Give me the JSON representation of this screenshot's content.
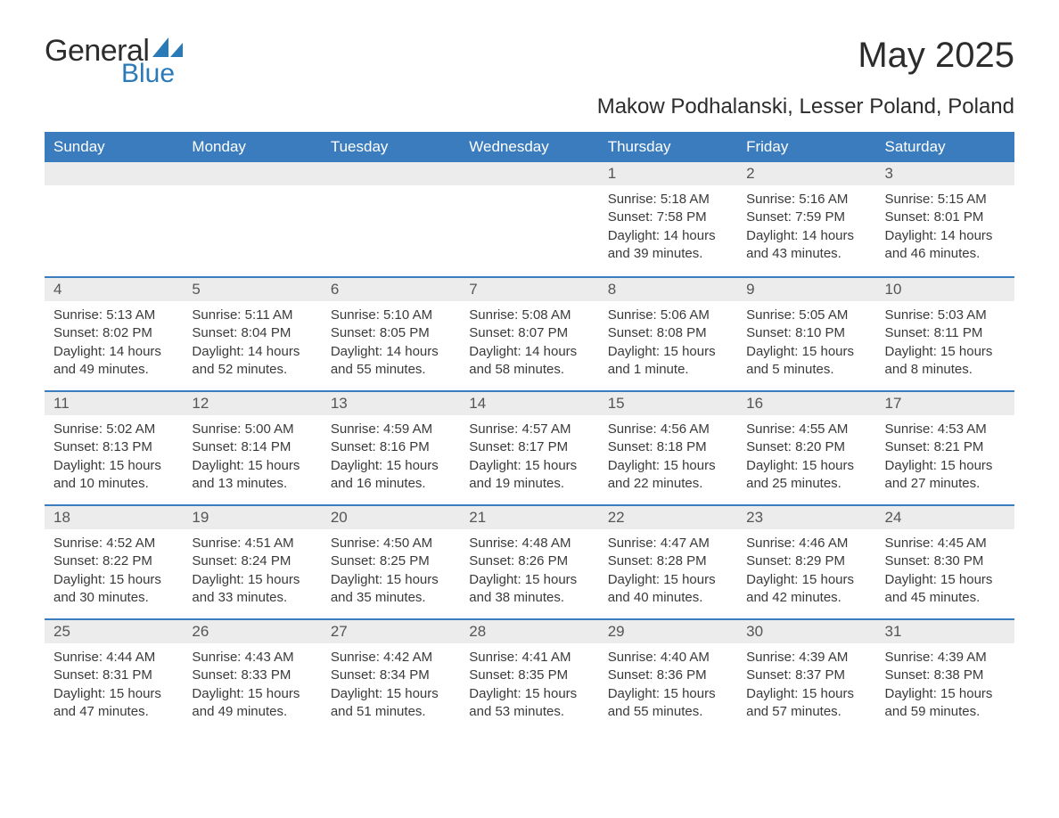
{
  "brand": {
    "general": "General",
    "blue": "Blue"
  },
  "title": "May 2025",
  "location": "Makow Podhalanski, Lesser Poland, Poland",
  "colors": {
    "header_bg": "#3b7cbf",
    "header_text": "#ffffff",
    "daynum_bg": "#ececec",
    "daynum_text": "#555555",
    "body_text": "#3a3a3a",
    "brand_blue": "#2a7ab8",
    "week_divider": "#3b7cbf",
    "page_bg": "#ffffff"
  },
  "weekdays": [
    "Sunday",
    "Monday",
    "Tuesday",
    "Wednesday",
    "Thursday",
    "Friday",
    "Saturday"
  ],
  "weeks": [
    [
      {
        "n": "",
        "sr": "",
        "ss": "",
        "dl": ""
      },
      {
        "n": "",
        "sr": "",
        "ss": "",
        "dl": ""
      },
      {
        "n": "",
        "sr": "",
        "ss": "",
        "dl": ""
      },
      {
        "n": "",
        "sr": "",
        "ss": "",
        "dl": ""
      },
      {
        "n": "1",
        "sr": "Sunrise: 5:18 AM",
        "ss": "Sunset: 7:58 PM",
        "dl": "Daylight: 14 hours and 39 minutes."
      },
      {
        "n": "2",
        "sr": "Sunrise: 5:16 AM",
        "ss": "Sunset: 7:59 PM",
        "dl": "Daylight: 14 hours and 43 minutes."
      },
      {
        "n": "3",
        "sr": "Sunrise: 5:15 AM",
        "ss": "Sunset: 8:01 PM",
        "dl": "Daylight: 14 hours and 46 minutes."
      }
    ],
    [
      {
        "n": "4",
        "sr": "Sunrise: 5:13 AM",
        "ss": "Sunset: 8:02 PM",
        "dl": "Daylight: 14 hours and 49 minutes."
      },
      {
        "n": "5",
        "sr": "Sunrise: 5:11 AM",
        "ss": "Sunset: 8:04 PM",
        "dl": "Daylight: 14 hours and 52 minutes."
      },
      {
        "n": "6",
        "sr": "Sunrise: 5:10 AM",
        "ss": "Sunset: 8:05 PM",
        "dl": "Daylight: 14 hours and 55 minutes."
      },
      {
        "n": "7",
        "sr": "Sunrise: 5:08 AM",
        "ss": "Sunset: 8:07 PM",
        "dl": "Daylight: 14 hours and 58 minutes."
      },
      {
        "n": "8",
        "sr": "Sunrise: 5:06 AM",
        "ss": "Sunset: 8:08 PM",
        "dl": "Daylight: 15 hours and 1 minute."
      },
      {
        "n": "9",
        "sr": "Sunrise: 5:05 AM",
        "ss": "Sunset: 8:10 PM",
        "dl": "Daylight: 15 hours and 5 minutes."
      },
      {
        "n": "10",
        "sr": "Sunrise: 5:03 AM",
        "ss": "Sunset: 8:11 PM",
        "dl": "Daylight: 15 hours and 8 minutes."
      }
    ],
    [
      {
        "n": "11",
        "sr": "Sunrise: 5:02 AM",
        "ss": "Sunset: 8:13 PM",
        "dl": "Daylight: 15 hours and 10 minutes."
      },
      {
        "n": "12",
        "sr": "Sunrise: 5:00 AM",
        "ss": "Sunset: 8:14 PM",
        "dl": "Daylight: 15 hours and 13 minutes."
      },
      {
        "n": "13",
        "sr": "Sunrise: 4:59 AM",
        "ss": "Sunset: 8:16 PM",
        "dl": "Daylight: 15 hours and 16 minutes."
      },
      {
        "n": "14",
        "sr": "Sunrise: 4:57 AM",
        "ss": "Sunset: 8:17 PM",
        "dl": "Daylight: 15 hours and 19 minutes."
      },
      {
        "n": "15",
        "sr": "Sunrise: 4:56 AM",
        "ss": "Sunset: 8:18 PM",
        "dl": "Daylight: 15 hours and 22 minutes."
      },
      {
        "n": "16",
        "sr": "Sunrise: 4:55 AM",
        "ss": "Sunset: 8:20 PM",
        "dl": "Daylight: 15 hours and 25 minutes."
      },
      {
        "n": "17",
        "sr": "Sunrise: 4:53 AM",
        "ss": "Sunset: 8:21 PM",
        "dl": "Daylight: 15 hours and 27 minutes."
      }
    ],
    [
      {
        "n": "18",
        "sr": "Sunrise: 4:52 AM",
        "ss": "Sunset: 8:22 PM",
        "dl": "Daylight: 15 hours and 30 minutes."
      },
      {
        "n": "19",
        "sr": "Sunrise: 4:51 AM",
        "ss": "Sunset: 8:24 PM",
        "dl": "Daylight: 15 hours and 33 minutes."
      },
      {
        "n": "20",
        "sr": "Sunrise: 4:50 AM",
        "ss": "Sunset: 8:25 PM",
        "dl": "Daylight: 15 hours and 35 minutes."
      },
      {
        "n": "21",
        "sr": "Sunrise: 4:48 AM",
        "ss": "Sunset: 8:26 PM",
        "dl": "Daylight: 15 hours and 38 minutes."
      },
      {
        "n": "22",
        "sr": "Sunrise: 4:47 AM",
        "ss": "Sunset: 8:28 PM",
        "dl": "Daylight: 15 hours and 40 minutes."
      },
      {
        "n": "23",
        "sr": "Sunrise: 4:46 AM",
        "ss": "Sunset: 8:29 PM",
        "dl": "Daylight: 15 hours and 42 minutes."
      },
      {
        "n": "24",
        "sr": "Sunrise: 4:45 AM",
        "ss": "Sunset: 8:30 PM",
        "dl": "Daylight: 15 hours and 45 minutes."
      }
    ],
    [
      {
        "n": "25",
        "sr": "Sunrise: 4:44 AM",
        "ss": "Sunset: 8:31 PM",
        "dl": "Daylight: 15 hours and 47 minutes."
      },
      {
        "n": "26",
        "sr": "Sunrise: 4:43 AM",
        "ss": "Sunset: 8:33 PM",
        "dl": "Daylight: 15 hours and 49 minutes."
      },
      {
        "n": "27",
        "sr": "Sunrise: 4:42 AM",
        "ss": "Sunset: 8:34 PM",
        "dl": "Daylight: 15 hours and 51 minutes."
      },
      {
        "n": "28",
        "sr": "Sunrise: 4:41 AM",
        "ss": "Sunset: 8:35 PM",
        "dl": "Daylight: 15 hours and 53 minutes."
      },
      {
        "n": "29",
        "sr": "Sunrise: 4:40 AM",
        "ss": "Sunset: 8:36 PM",
        "dl": "Daylight: 15 hours and 55 minutes."
      },
      {
        "n": "30",
        "sr": "Sunrise: 4:39 AM",
        "ss": "Sunset: 8:37 PM",
        "dl": "Daylight: 15 hours and 57 minutes."
      },
      {
        "n": "31",
        "sr": "Sunrise: 4:39 AM",
        "ss": "Sunset: 8:38 PM",
        "dl": "Daylight: 15 hours and 59 minutes."
      }
    ]
  ]
}
